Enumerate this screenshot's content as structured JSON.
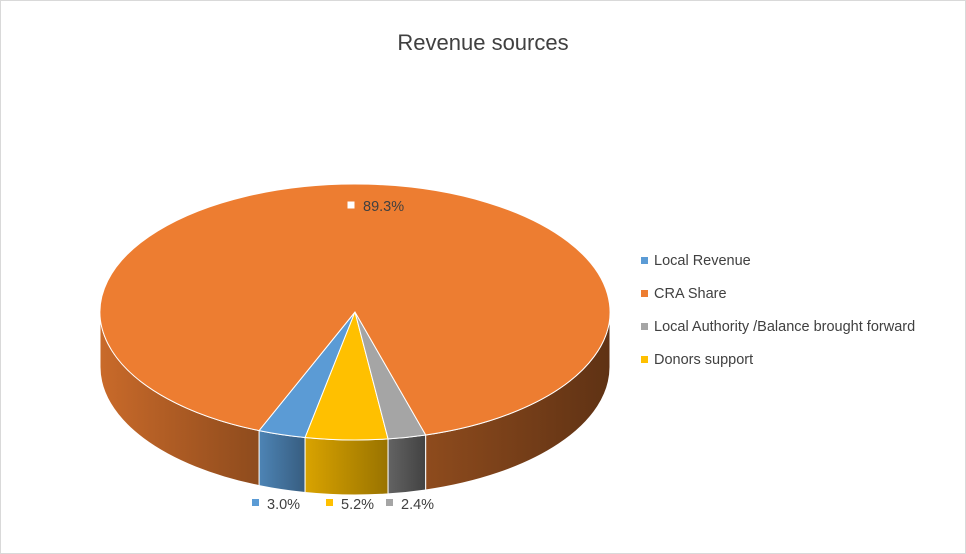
{
  "chart_data": {
    "type": "pie",
    "style": "3d",
    "title": "Revenue sources",
    "categories": [
      "Local Revenue",
      "CRA Share",
      "Local Authority /Balance brought forward",
      "Donors support"
    ],
    "values": [
      3.0,
      89.3,
      2.4,
      5.2
    ],
    "data_labels": [
      "3.0%",
      "89.3%",
      "2.4%",
      "5.2%"
    ],
    "colors": [
      "#5B9BD5",
      "#ED7D31",
      "#A5A5A5",
      "#FFC000"
    ],
    "slice_order": [
      0,
      3,
      2,
      1
    ],
    "legend_position": "right"
  }
}
